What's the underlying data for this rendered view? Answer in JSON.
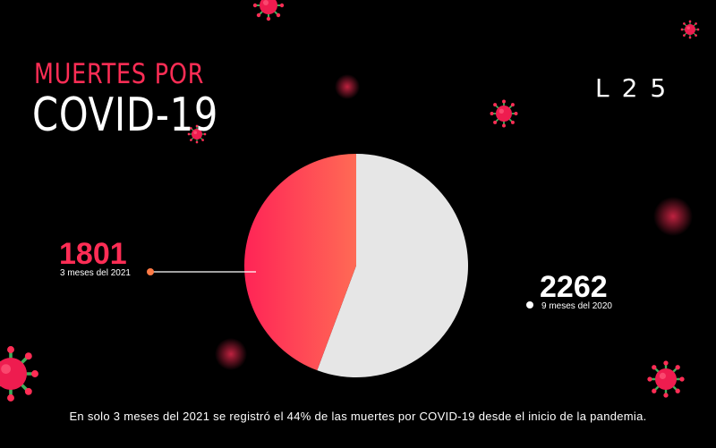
{
  "header": {
    "title_line1": "MUERTES POR",
    "title_line2": "COVID-19",
    "logo": "L25"
  },
  "colors": {
    "accent": "#ff2d55",
    "slice_2021_start": "#ff2456",
    "slice_2021_end": "#ff6a55",
    "slice_2020": "#e6e6e6",
    "background": "#000000"
  },
  "chart_data": {
    "type": "pie",
    "title": "MUERTES POR COVID-19",
    "slices": [
      {
        "label": "3 meses del 2021",
        "value": 1801,
        "display": "1801",
        "color": "#ff2d55"
      },
      {
        "label": "9 meses del 2020",
        "value": 2262,
        "display": "2262",
        "color": "#e6e6e6"
      }
    ]
  },
  "footnote": "En solo 3 meses del 2021 se registró el 44% de las muertes por COVID-19 desde el inicio de la pandemia."
}
